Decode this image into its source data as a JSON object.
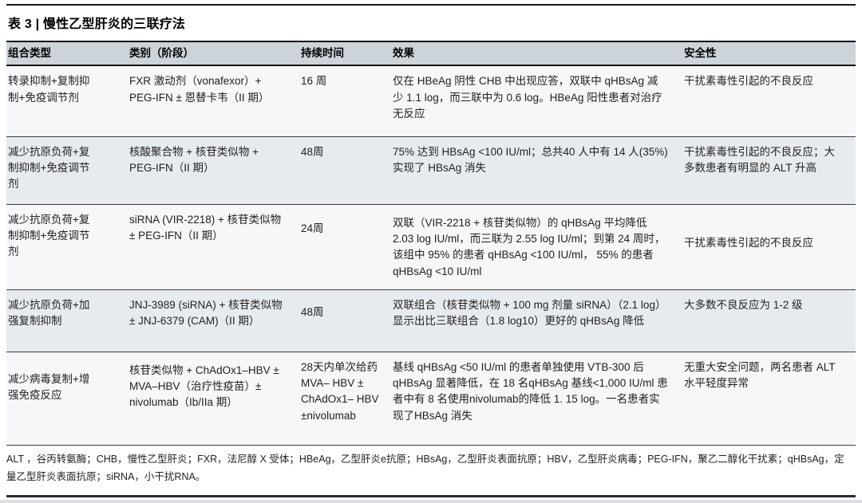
{
  "page": {
    "title": "表 3 | 慢性乙型肝炎的三联疗法"
  },
  "table": {
    "headers": {
      "combination": "组合类型",
      "category": "类别（阶段）",
      "duration": "持续时间",
      "effect": "效果",
      "safety": "安全性"
    },
    "rows": [
      {
        "combination": "转录抑制+复制抑制+免疫调节剂",
        "category": "FXR 激动剂（vonafexor）+ PEG-IFN ± 恩替卡韦（II 期）",
        "duration": "16 周",
        "effect": "仅在 HBeAg 阴性 CHB 中出现应答，双联中 qHBsAg 减少 1.1 log，而三联中为 0.6 log。HBeAg 阳性患者对治疗无反应",
        "safety": "干扰素毒性引起的不良反应"
      },
      {
        "combination": "减少抗原负荷+复制抑制+免疫调节剂",
        "category": "核酸聚合物 + 核苷类似物 + PEG-IFN（II 期）",
        "duration": "48周",
        "effect": "75% 达到 HBsAg <100 IU/ml；总共40 人中有 14 人(35%) 实现了 HBsAg 消失",
        "safety": "干扰素毒性引起的不良反应；大多数患者有明显的 ALT 升高"
      },
      {
        "combination": "减少抗原负荷+复制抑制+免疫调节剂",
        "category": "siRNA (VIR-2218) + 核苷类似物 ± PEG-IFN（II 期）",
        "duration": "24周",
        "effect": "双联（VIR-2218 + 核苷类似物）的 qHBsAg 平均降低 2.03 log IU/ml，而三联为 2.55 log IU/ml；到第 24 周时，该组中 95% 的患者 qHBsAg <100 IU/ml， 55% 的患者 qHBsAg <10 IU/ml",
        "safety": "干扰素毒性引起的不良反应"
      },
      {
        "combination": "减少抗原负荷+加强复制抑制",
        "category": "JNJ-3989 (siRNA) + 核苷类似物 ± JNJ-6379 (CAM)（II 期）",
        "duration": "48周",
        "effect": "双联组合（核苷类似物 + 100 mg 剂量 siRNA）（2.1 log）显示出比三联组合（1.8 log10）更好的 qHBsAg 降低",
        "safety": "大多数不良反应为 1-2 级"
      },
      {
        "combination": "减少病毒复制+增强免疫反应",
        "category": "核苷类似物 + ChAdOx1–HBV ± MVA–HBV（治疗性疫苗）± nivolumab（Ib/IIa 期）",
        "duration": "28天内单次给药 MVA– HBV ± ChAdOx1– HBV ±nivolumab",
        "effect": "基线 qHBsAg <50 IU/ml 的患者单独使用 VTB-300 后 qHBsAg 显著降低，在 18 名qHBsAg 基线<1,000 IU/ml 患者中有 8 名使用nivolumab的降低 1. 15 log。一名患者实现了HBsAg 消失",
        "safety": "无重大安全问题，两名患者 ALT 水平轻度异常"
      }
    ]
  },
  "footnote": "ALT ，谷丙转氨酶；CHB，慢性乙型肝炎；FXR，法尼醇 X 受体；HBeAg，乙型肝炎e抗原；HBsAg，乙型肝炎表面抗原；HBV，乙型肝炎病毒；PEG-IFN，聚乙二醇化干扰素；qHBsAg，定量乙型肝炎表面抗原；siRNA，小干扰RNA。",
  "colors": {
    "header_bg": "#ccd3d9",
    "row_light": "#f5f7f9",
    "row_dark": "#e8ebee",
    "rule_dark": "#141414"
  }
}
